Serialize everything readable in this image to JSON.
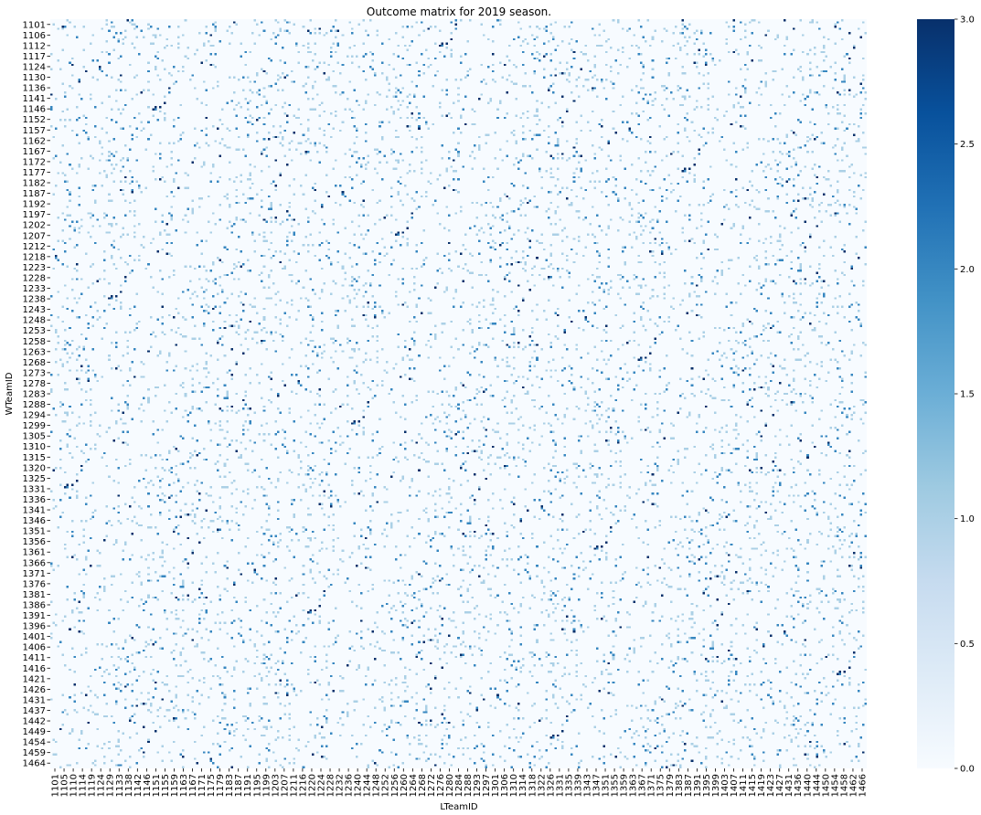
{
  "chart_data": {
    "type": "heatmap",
    "title": "Outcome matrix for 2019 season.",
    "xlabel": "LTeamID",
    "ylabel": "WTeamID",
    "x_tick_labels": [
      "1101",
      "1105",
      "1110",
      "1114",
      "1119",
      "1124",
      "1129",
      "1133",
      "1138",
      "1142",
      "1146",
      "1151",
      "1155",
      "1159",
      "1163",
      "1167",
      "1171",
      "1175",
      "1179",
      "1183",
      "1187",
      "1191",
      "1195",
      "1199",
      "1203",
      "1207",
      "1211",
      "1216",
      "1220",
      "1224",
      "1228",
      "1232",
      "1236",
      "1240",
      "1244",
      "1248",
      "1252",
      "1256",
      "1260",
      "1264",
      "1268",
      "1272",
      "1276",
      "1280",
      "1284",
      "1288",
      "1293",
      "1297",
      "1301",
      "1306",
      "1310",
      "1314",
      "1318",
      "1322",
      "1326",
      "1331",
      "1335",
      "1339",
      "1343",
      "1347",
      "1351",
      "1355",
      "1359",
      "1363",
      "1367",
      "1371",
      "1375",
      "1379",
      "1383",
      "1387",
      "1391",
      "1395",
      "1399",
      "1403",
      "1407",
      "1411",
      "1415",
      "1419",
      "1423",
      "1427",
      "1431",
      "1436",
      "1440",
      "1444",
      "1450",
      "1454",
      "1458",
      "1462",
      "1466"
    ],
    "y_tick_labels": [
      "1101",
      "1106",
      "1112",
      "1117",
      "1124",
      "1130",
      "1136",
      "1141",
      "1146",
      "1152",
      "1157",
      "1162",
      "1167",
      "1172",
      "1177",
      "1182",
      "1187",
      "1192",
      "1197",
      "1202",
      "1207",
      "1212",
      "1218",
      "1223",
      "1228",
      "1233",
      "1238",
      "1243",
      "1248",
      "1253",
      "1258",
      "1263",
      "1268",
      "1273",
      "1278",
      "1283",
      "1288",
      "1294",
      "1299",
      "1305",
      "1310",
      "1315",
      "1320",
      "1325",
      "1331",
      "1336",
      "1341",
      "1346",
      "1351",
      "1356",
      "1361",
      "1366",
      "1371",
      "1376",
      "1381",
      "1386",
      "1391",
      "1396",
      "1401",
      "1406",
      "1411",
      "1416",
      "1421",
      "1426",
      "1431",
      "1437",
      "1442",
      "1449",
      "1454",
      "1459",
      "1464"
    ],
    "grid_size": [
      353,
      353
    ],
    "value_range": [
      0,
      3.0
    ],
    "colormap": "Blues",
    "colorbar_ticks": [
      "0.0",
      "0.5",
      "1.0",
      "1.5",
      "2.0",
      "2.5",
      "3.0"
    ],
    "colorbar_values": [
      0,
      0.5,
      1.0,
      1.5,
      2.0,
      2.5,
      3.0
    ],
    "cell_value_distribution": {
      "0": 0.935,
      "1": 0.045,
      "2": 0.015,
      "3": 0.005
    },
    "grid": false
  }
}
